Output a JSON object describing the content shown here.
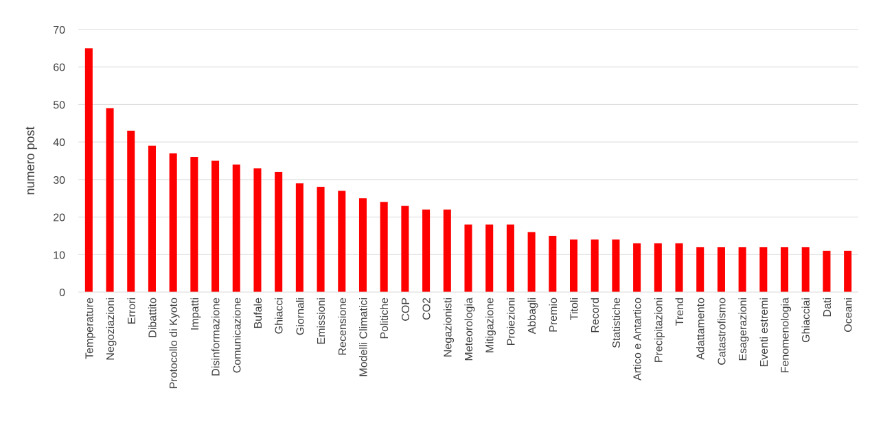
{
  "chart_data": {
    "type": "bar",
    "title": "",
    "xlabel": "",
    "ylabel": "numero post",
    "ylim": [
      0,
      70
    ],
    "yticks": [
      0,
      10,
      20,
      30,
      40,
      50,
      60,
      70
    ],
    "grid": true,
    "legend": "none",
    "bar_color": "#ff0000",
    "categories": [
      "Temperature",
      "Negoziazioni",
      "Errori",
      "Dibattito",
      "Protocollo di Kyoto",
      "Impatti",
      "Disinformazione",
      "Comunicazione",
      "Bufale",
      "Ghiacci",
      "Giornali",
      "Emissioni",
      "Recensione",
      "Modelli Climatici",
      "Politiche",
      "COP",
      "CO2",
      "Negazionisti",
      "Meteorologia",
      "Mitigazione",
      "Proiezioni",
      "Abbagli",
      "Premio",
      "Titoli",
      "Record",
      "Statistiche",
      "Artico e Antartico",
      "Precipitazioni",
      "Trend",
      "Adattamento",
      "Catastrofismo",
      "Esagerazioni",
      "Eventi estremi",
      "Fenomenologia",
      "Ghiacciai",
      "Dati",
      "Oceani"
    ],
    "values": [
      65,
      49,
      43,
      39,
      37,
      36,
      35,
      34,
      33,
      32,
      29,
      28,
      27,
      25,
      24,
      23,
      22,
      22,
      18,
      18,
      18,
      16,
      15,
      14,
      14,
      14,
      13,
      13,
      13,
      12,
      12,
      12,
      12,
      12,
      12,
      11,
      11
    ]
  }
}
